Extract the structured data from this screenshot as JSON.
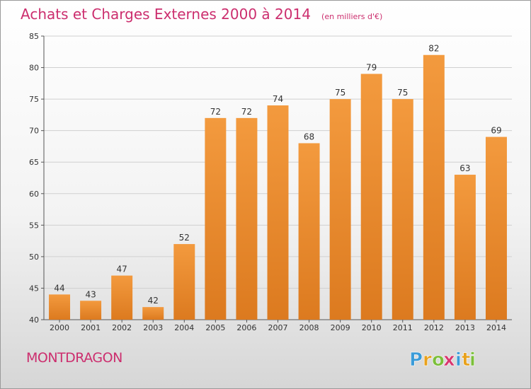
{
  "header": {
    "title": "Achats et Charges Externes 2000 à 2014",
    "subtitle": "(en milliers d'€)"
  },
  "place": "MONTDRAGON",
  "brand": {
    "letters": [
      "P",
      "r",
      "o",
      "x",
      "i",
      "t",
      "i"
    ],
    "colors": [
      "#3a9bd8",
      "#e8a11c",
      "#7bbf3a",
      "#d9366f",
      "#3a9bd8",
      "#e8a11c",
      "#7bbf3a"
    ]
  },
  "colors": {
    "bar": "#f39a3e",
    "bar_dark": "#dc7a1f",
    "title": "#cc2e6e"
  },
  "chart_data": {
    "type": "bar",
    "categories": [
      "2000",
      "2001",
      "2002",
      "2003",
      "2004",
      "2005",
      "2006",
      "2007",
      "2008",
      "2009",
      "2010",
      "2011",
      "2012",
      "2013",
      "2014"
    ],
    "values": [
      44,
      43,
      47,
      42,
      52,
      72,
      72,
      74,
      68,
      75,
      79,
      75,
      82,
      63,
      69
    ],
    "title": "Achats et Charges Externes 2000 à 2014",
    "subtitle": "(en milliers d'€)",
    "ylim": [
      40,
      85
    ],
    "yticks": [
      40,
      45,
      50,
      55,
      60,
      65,
      70,
      75,
      80,
      85
    ],
    "grid": true,
    "data_labels": true
  }
}
